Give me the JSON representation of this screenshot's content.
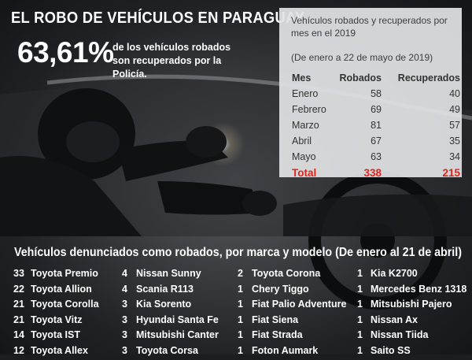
{
  "header": {
    "title": "EL ROBO DE VEHÍCULOS EN PARAGUAY",
    "stat_value": "63,61%",
    "stat_text": "de los vehículos robados son recuperados por la Policía."
  },
  "table": {
    "title": "Vehículos robados y recuperados por mes en el 2019",
    "range": "(De enero a 22 de mayo de 2019)",
    "headers": [
      "Mes",
      "Robados",
      "Recuperados"
    ],
    "rows": [
      [
        "Enero",
        "58",
        "40"
      ],
      [
        "Febrero",
        "69",
        "49"
      ],
      [
        "Marzo",
        "81",
        "57"
      ],
      [
        "Abril",
        "67",
        "35"
      ],
      [
        "Mayo",
        "63",
        "34"
      ]
    ],
    "total": [
      "Total",
      "338",
      "215"
    ]
  },
  "section": {
    "title": "Vehículos denunciados como robados, por marca y modelo (De enero al 21 de abril)",
    "columns": [
      [
        [
          "33",
          "Toyota Premio"
        ],
        [
          "22",
          "Toyota Allion"
        ],
        [
          "21",
          "Toyota Corolla"
        ],
        [
          "21",
          "Toyota Vitz"
        ],
        [
          "14",
          "Toyota IST"
        ],
        [
          "12",
          "Toyota Allex"
        ]
      ],
      [
        [
          "4",
          "Nissan Sunny"
        ],
        [
          "4",
          "Scania R113"
        ],
        [
          "3",
          "Kia Sorento"
        ],
        [
          "3",
          "Hyundai Santa Fe"
        ],
        [
          "3",
          "Mitsubishi Canter"
        ],
        [
          "3",
          "Toyota Corsa"
        ]
      ],
      [
        [
          "2",
          "Toyota Corona"
        ],
        [
          "1",
          "Chery Tiggo"
        ],
        [
          "1",
          "Fiat Palio Adventure"
        ],
        [
          "1",
          "Fiat Siena"
        ],
        [
          "1",
          "Fiat Strada"
        ],
        [
          "1",
          "Foton Aumark"
        ]
      ],
      [
        [
          "1",
          "Kia K2700"
        ],
        [
          "1",
          "Mercedes Benz 1318"
        ],
        [
          "1",
          "Mitsubishi Pajero"
        ],
        [
          "1",
          "Nissan Ax"
        ],
        [
          "1",
          "Nissan Tiida"
        ],
        [
          "1",
          "Saito SS"
        ]
      ]
    ]
  },
  "colors": {
    "total_red": "#e0261b",
    "panel_bg": "#e1e2e4",
    "background": "#1b1d20",
    "text_white": "#ffffff"
  }
}
